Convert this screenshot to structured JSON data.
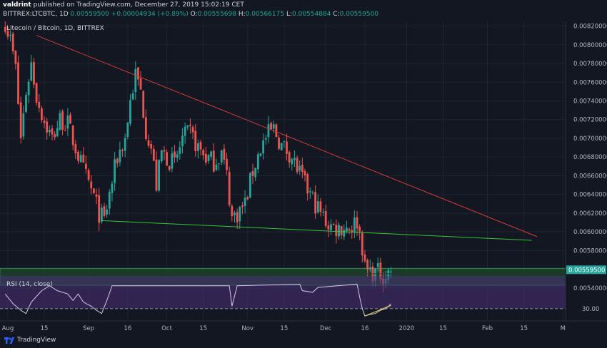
{
  "header": {
    "author": "valdrint",
    "published_text": "published on TradingView.com, December 27, 2019 15:02:19 CET",
    "symbol": "BITTREX:LTCBTC, 1D",
    "last": "0.00559500",
    "change": "+0.00004934 (+0.89%)",
    "open_label": "O:",
    "open": "0.00555698",
    "high_label": "H:",
    "high": "0.00566175",
    "low_label": "L:",
    "low": "0.00554884",
    "close_label": "C:",
    "close": "0.00559500"
  },
  "footer": {
    "brand": "TradingView"
  },
  "colors": {
    "up": "#26a69a",
    "down": "#ef5350",
    "background": "#131722",
    "grid": "#1f2430",
    "resistance": "#d23a3a",
    "support": "#38c43a",
    "zone": "#1c4a2c",
    "rsi_band": "#4a2f78",
    "rsi_line": "#d4c9e6",
    "rsi_trend": "#e8d35a",
    "price_badge": "#26a69a"
  },
  "chart_data": {
    "type": "candlestick",
    "title": "Litecoin / Bitcoin, 1D, BITTREX",
    "y_ticks": [
      "0.00820000",
      "0.00800000",
      "0.00780000",
      "0.00760000",
      "0.00740000",
      "0.00720000",
      "0.00700000",
      "0.00680000",
      "0.00660000",
      "0.00640000",
      "0.00620000",
      "0.00600000",
      "0.00580000",
      "0.00540000"
    ],
    "ylim": [
      0.0053,
      0.00825
    ],
    "y_scale": "linear",
    "grid": true,
    "x_ticks": [
      "Aug",
      "15",
      "Sep",
      "16",
      "Oct",
      "15",
      "Nov",
      "15",
      "Dec",
      "16",
      "2020",
      "15",
      "Feb",
      "15",
      "M"
    ],
    "x_tick_dates": [
      "2019-08-01",
      "2019-08-15",
      "2019-09-01",
      "2019-09-16",
      "2019-10-01",
      "2019-10-15",
      "2019-11-01",
      "2019-11-15",
      "2019-12-01",
      "2019-12-16",
      "2020-01-01",
      "2020-01-15",
      "2020-02-01",
      "2020-02-15",
      "2020-03-01"
    ],
    "xlim": [
      "2019-07-29",
      "2020-03-02"
    ],
    "current_price": "0.00559500",
    "candle_anchors": [
      [
        "2019-07-31",
        0.00825
      ],
      [
        "2019-08-02",
        0.00805
      ],
      [
        "2019-08-04",
        0.00775
      ],
      [
        "2019-08-06",
        0.007
      ],
      [
        "2019-08-08",
        0.0075
      ],
      [
        "2019-08-10",
        0.0078
      ],
      [
        "2019-08-12",
        0.00745
      ],
      [
        "2019-08-15",
        0.00718
      ],
      [
        "2019-08-18",
        0.007
      ],
      [
        "2019-08-21",
        0.0072
      ],
      [
        "2019-08-24",
        0.00715
      ],
      [
        "2019-08-27",
        0.0069
      ],
      [
        "2019-08-30",
        0.00665
      ],
      [
        "2019-09-02",
        0.00645
      ],
      [
        "2019-09-05",
        0.0062
      ],
      [
        "2019-09-07",
        0.00612
      ],
      [
        "2019-09-09",
        0.0064
      ],
      [
        "2019-09-12",
        0.0068
      ],
      [
        "2019-09-15",
        0.007
      ],
      [
        "2019-09-17",
        0.0074
      ],
      [
        "2019-09-19",
        0.00768
      ],
      [
        "2019-09-21",
        0.0075
      ],
      [
        "2019-09-23",
        0.0071
      ],
      [
        "2019-09-25",
        0.0069
      ],
      [
        "2019-09-27",
        0.0065
      ],
      [
        "2019-09-29",
        0.00685
      ],
      [
        "2019-10-01",
        0.0068
      ],
      [
        "2019-10-04",
        0.00672
      ],
      [
        "2019-10-07",
        0.007
      ],
      [
        "2019-10-10",
        0.00705
      ],
      [
        "2019-10-13",
        0.0069
      ],
      [
        "2019-10-16",
        0.0068
      ],
      [
        "2019-10-19",
        0.00675
      ],
      [
        "2019-10-22",
        0.00685
      ],
      [
        "2019-10-24",
        0.0066
      ],
      [
        "2019-10-26",
        0.00615
      ],
      [
        "2019-10-28",
        0.0062
      ],
      [
        "2019-10-31",
        0.0063
      ],
      [
        "2019-11-03",
        0.00665
      ],
      [
        "2019-11-06",
        0.0069
      ],
      [
        "2019-11-09",
        0.00705
      ],
      [
        "2019-11-11",
        0.0071
      ],
      [
        "2019-11-14",
        0.00692
      ],
      [
        "2019-11-17",
        0.00685
      ],
      [
        "2019-11-20",
        0.00668
      ],
      [
        "2019-11-23",
        0.0065
      ],
      [
        "2019-11-26",
        0.00635
      ],
      [
        "2019-11-29",
        0.0062
      ],
      [
        "2019-12-02",
        0.00608
      ],
      [
        "2019-12-05",
        0.00604
      ],
      [
        "2019-12-08",
        0.00605
      ],
      [
        "2019-12-11",
        0.00606
      ],
      [
        "2019-12-13",
        0.00612
      ],
      [
        "2019-12-15",
        0.00585
      ],
      [
        "2019-12-16",
        0.0056
      ],
      [
        "2019-12-18",
        0.00558
      ],
      [
        "2019-12-21",
        0.00556
      ],
      [
        "2019-12-24",
        0.00554
      ],
      [
        "2019-12-26",
        0.00559
      ]
    ],
    "zone": {
      "upper": 0.00561,
      "lower": 0.00543
    },
    "resistance_line": [
      [
        "2019-08-12",
        0.0081
      ],
      [
        "2020-02-20",
        0.00595
      ]
    ],
    "support_line": [
      [
        "2019-09-06",
        0.00612
      ],
      [
        "2020-02-18",
        0.00591
      ]
    ],
    "rsi": {
      "label": "RSI (14, close)",
      "y_tick": "30.00",
      "level": 30,
      "ylim": [
        15,
        70
      ],
      "points": [
        [
          "2019-07-31",
          48
        ],
        [
          "2019-08-03",
          36
        ],
        [
          "2019-08-06",
          28
        ],
        [
          "2019-08-08",
          24
        ],
        [
          "2019-08-10",
          38
        ],
        [
          "2019-08-12",
          45
        ],
        [
          "2019-08-14",
          52
        ],
        [
          "2019-08-17",
          58
        ],
        [
          "2019-08-20",
          52
        ],
        [
          "2019-08-24",
          48
        ],
        [
          "2019-08-26",
          40
        ],
        [
          "2019-08-28",
          48
        ],
        [
          "2019-08-30",
          38
        ],
        [
          "2019-09-02",
          33
        ],
        [
          "2019-09-04",
          28
        ],
        [
          "2019-09-06",
          24
        ],
        [
          "2019-09-08",
          40
        ],
        [
          "2019-09-10",
          58
        ],
        [
          "2019-10-25",
          58
        ],
        [
          "2019-10-26",
          33
        ],
        [
          "2019-10-28",
          58
        ],
        [
          "2019-11-21",
          60
        ],
        [
          "2019-11-22",
          52
        ],
        [
          "2019-11-26",
          50
        ],
        [
          "2019-11-28",
          56
        ],
        [
          "2019-12-13",
          60
        ],
        [
          "2019-12-14",
          44
        ],
        [
          "2019-12-15",
          30
        ],
        [
          "2019-12-16",
          21
        ],
        [
          "2019-12-18",
          23
        ],
        [
          "2019-12-20",
          24
        ],
        [
          "2019-12-22",
          28
        ],
        [
          "2019-12-24",
          30
        ],
        [
          "2019-12-26",
          36
        ]
      ],
      "trendline": [
        [
          "2019-12-16",
          21
        ],
        [
          "2019-12-26",
          34
        ]
      ]
    }
  }
}
